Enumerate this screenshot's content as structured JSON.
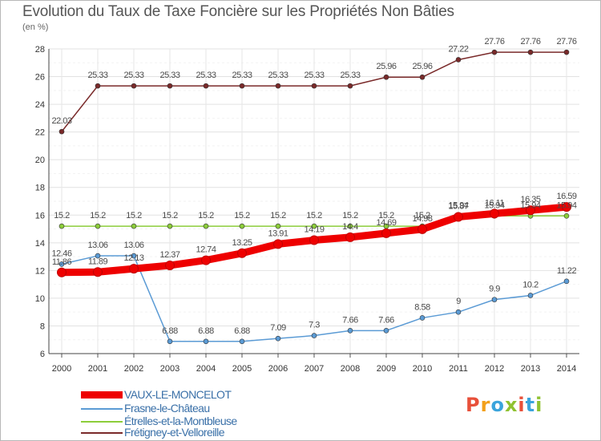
{
  "header": {
    "title": "Evolution du Taux de Taxe Foncière sur les Propriétés Non Bâties",
    "unit": "(en %)"
  },
  "logo": {
    "text": "Proxiti",
    "letters": [
      "P",
      "r",
      "o",
      "x",
      "i",
      "t",
      "i"
    ],
    "colors": [
      "#e8503a",
      "#f2a01b",
      "#3aa4dc",
      "#8fc231",
      "#e8503a",
      "#3aa4dc",
      "#8fc231"
    ]
  },
  "chart_data": {
    "type": "line",
    "title": "Evolution du Taux de Taxe Foncière sur les Propriétés Non Bâties",
    "ylabel": "(en %)",
    "xlabel": "",
    "x": [
      "2000",
      "2001",
      "2002",
      "2003",
      "2004",
      "2005",
      "2006",
      "2007",
      "2008",
      "2009",
      "2010",
      "2011",
      "2012",
      "2013",
      "2014"
    ],
    "ylim": [
      6,
      28
    ],
    "yticks": [
      6,
      8,
      10,
      12,
      14,
      16,
      18,
      20,
      22,
      24,
      26,
      28
    ],
    "grid": true,
    "legend_position": "bottom-left",
    "series": [
      {
        "name": "VAUX-LE-MONCELOT",
        "color": "#ee0000",
        "values": [
          11.86,
          11.89,
          12.13,
          12.37,
          12.74,
          13.25,
          13.91,
          14.19,
          14.4,
          14.69,
          14.98,
          15.87,
          16.11,
          16.35,
          16.59
        ],
        "labels": [
          "11.86",
          "11.89",
          "12.13",
          "12.37",
          "12.74",
          "13.25",
          "13.91",
          "14.19",
          "14.4",
          "14.69",
          "14.98",
          "15.87",
          "16.11",
          "16.35",
          "16.59"
        ]
      },
      {
        "name": "Frasne-le-Château",
        "color": "#5b9bd5",
        "values": [
          12.46,
          13.06,
          13.06,
          6.88,
          6.88,
          6.88,
          7.09,
          7.3,
          7.66,
          7.66,
          8.58,
          9,
          9.9,
          10.2,
          11.22
        ],
        "labels": [
          "12.46",
          "13.06",
          "13.06",
          "6.88",
          "6.88",
          "6.88",
          "7.09",
          "7.3",
          "7.66",
          "7.66",
          "8.58",
          "9",
          "9.9",
          "10.2",
          "11.22"
        ]
      },
      {
        "name": "Étrelles-et-la-Montbleuse",
        "color": "#8ccd3a",
        "values": [
          15.2,
          15.2,
          15.2,
          15.2,
          15.2,
          15.2,
          15.2,
          15.2,
          15.2,
          15.2,
          15.2,
          15.94,
          15.94,
          15.94,
          15.94
        ],
        "labels": [
          "15.2",
          "15.2",
          "15.2",
          "15.2",
          "15.2",
          "15.2",
          "15.2",
          "15.2",
          "15.2",
          "15.2",
          "15.2",
          "15.94",
          "15.94",
          "15.94",
          "15.94"
        ]
      },
      {
        "name": "Frétigney-et-Velloreille",
        "color": "#7a2a2a",
        "values": [
          22.03,
          25.33,
          25.33,
          25.33,
          25.33,
          25.33,
          25.33,
          25.33,
          25.33,
          25.96,
          25.96,
          27.22,
          27.76,
          27.76,
          27.76
        ],
        "labels": [
          "22.03",
          "25.33",
          "25.33",
          "25.33",
          "25.33",
          "25.33",
          "25.33",
          "25.33",
          "25.33",
          "25.96",
          "25.96",
          "27.22",
          "27.76",
          "27.76",
          "27.76"
        ]
      }
    ]
  }
}
